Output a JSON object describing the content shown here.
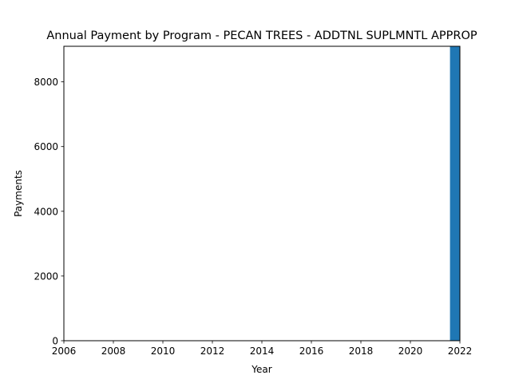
{
  "chart_data": {
    "type": "bar",
    "title": "Annual Payment by Program - PECAN TREES - ADDTNL SUPLMNTL APPROP",
    "xlabel": "Year",
    "ylabel": "Payments",
    "xlim": [
      2006,
      2022
    ],
    "ylim": [
      0,
      9100
    ],
    "x_ticks": [
      2006,
      2008,
      2010,
      2012,
      2014,
      2016,
      2018,
      2020,
      2022
    ],
    "y_ticks": [
      0,
      2000,
      4000,
      6000,
      8000
    ],
    "grid": false,
    "bar_color": "#1f77b4",
    "bar_width_years": 0.8,
    "x": [
      2022
    ],
    "values": [
      9100
    ]
  }
}
